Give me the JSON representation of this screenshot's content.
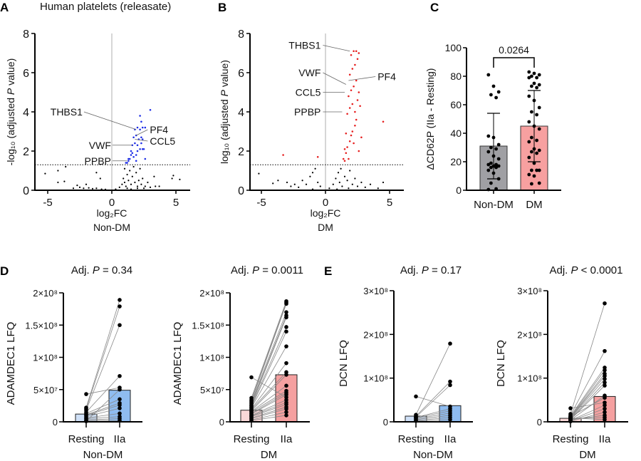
{
  "figure": {
    "panel_letters": [
      "A",
      "B",
      "C",
      "D",
      "E"
    ],
    "title_a": "Human platelets (releasate)"
  },
  "colors": {
    "nondm_sig": "#1f2fe6",
    "dm_sig": "#e61f1f",
    "ns": "#000000",
    "bar_nondm": "#a0a0a4",
    "bar_dm": "#f7a0a0",
    "rest_nondm": "#cfe0f7",
    "iia_nondm": "#8fbcf0",
    "rest_dm": "#f9d8d8",
    "iia_dm": "#f5a0a0",
    "zero_line": "#c8c8c8"
  },
  "chart_data": [
    {
      "id": "A",
      "type": "scatter",
      "xlabel": "log₂FC",
      "group": "Non-DM",
      "ylabel_parts": [
        "-log₁₀ (adjusted ",
        "P",
        " value)"
      ],
      "xlim": [
        -6,
        6.1
      ],
      "ylim": [
        0,
        8
      ],
      "xticks": [
        -5,
        0,
        5
      ],
      "yticks": [
        0,
        2,
        4,
        6,
        8
      ],
      "threshold": 1.3,
      "significant": [
        [
          1.2,
          1.4
        ],
        [
          1.3,
          1.5
        ],
        [
          1.1,
          1.4
        ],
        [
          1.4,
          1.6
        ],
        [
          1.5,
          1.8
        ],
        [
          1.6,
          1.9
        ],
        [
          1.7,
          1.7
        ],
        [
          1.9,
          1.8
        ],
        [
          2.0,
          2.0
        ],
        [
          2.2,
          2.1
        ],
        [
          2.4,
          2.1
        ],
        [
          2.5,
          2.1
        ],
        [
          1.6,
          2.3
        ],
        [
          1.8,
          2.4
        ],
        [
          2.0,
          2.3
        ],
        [
          2.3,
          2.4
        ],
        [
          1.7,
          2.7
        ],
        [
          1.9,
          2.8
        ],
        [
          2.1,
          2.6
        ],
        [
          2.3,
          2.7
        ],
        [
          2.4,
          2.6
        ],
        [
          1.8,
          3.1
        ],
        [
          2.0,
          3.2
        ],
        [
          2.2,
          3.1
        ],
        [
          2.4,
          3.2
        ],
        [
          2.6,
          3.2
        ],
        [
          2.3,
          3.5
        ],
        [
          2.2,
          3.8
        ],
        [
          3.0,
          4.1
        ],
        [
          1.5,
          2.0
        ],
        [
          1.3,
          1.6
        ],
        [
          2.6,
          1.6
        ],
        [
          1.9,
          1.5
        ]
      ],
      "nonsignificant": [
        [
          -5.2,
          0.85
        ],
        [
          -4.2,
          1.0
        ],
        [
          -3.6,
          1.2
        ],
        [
          -4.2,
          0.4
        ],
        [
          -3.7,
          0.45
        ],
        [
          -1.2,
          0.9
        ],
        [
          -0.9,
          0.6
        ],
        [
          4.8,
          0.75
        ],
        [
          4.7,
          0.6
        ],
        [
          5.3,
          0.55
        ],
        [
          3.3,
          0.7
        ],
        [
          -3.0,
          0.1
        ],
        [
          -2.7,
          0.25
        ],
        [
          -2.5,
          0.15
        ],
        [
          -2.2,
          0.1
        ],
        [
          -2.0,
          0.3
        ],
        [
          -1.8,
          0.12
        ],
        [
          -1.5,
          0.08
        ],
        [
          -1.2,
          0.1
        ],
        [
          -0.8,
          0.05
        ],
        [
          -0.5,
          0.04
        ],
        [
          0.3,
          0.05
        ],
        [
          0.6,
          0.15
        ],
        [
          0.8,
          0.3
        ],
        [
          0.9,
          0.6
        ],
        [
          1.0,
          0.4
        ],
        [
          1.1,
          0.2
        ],
        [
          1.2,
          0.8
        ],
        [
          1.3,
          0.5
        ],
        [
          1.4,
          1.0
        ],
        [
          1.5,
          0.3
        ],
        [
          1.6,
          0.7
        ],
        [
          1.7,
          1.2
        ],
        [
          1.8,
          0.4
        ],
        [
          1.9,
          0.9
        ],
        [
          2.0,
          0.2
        ],
        [
          2.1,
          0.5
        ],
        [
          2.2,
          1.1
        ],
        [
          2.3,
          0.3
        ],
        [
          2.4,
          0.6
        ],
        [
          2.6,
          0.2
        ],
        [
          2.8,
          0.4
        ],
        [
          3.0,
          0.15
        ],
        [
          3.4,
          0.2
        ],
        [
          3.7,
          0.2
        ],
        [
          1.0,
          1.1
        ],
        [
          1.2,
          0.1
        ],
        [
          1.5,
          0.05
        ],
        [
          2.0,
          0.1
        ],
        [
          2.5,
          0.1
        ]
      ],
      "annotations": [
        {
          "label": "THBS1",
          "point": [
            1.9,
            3.1
          ],
          "side": "left",
          "text_y": 4.0
        },
        {
          "label": "PF4",
          "point": [
            1.9,
            2.8
          ],
          "side": "right",
          "text_y": 3.0
        },
        {
          "label": "CCL5",
          "point": [
            1.8,
            2.6
          ],
          "side": "right",
          "text_y": 2.6
        },
        {
          "label": "VWF",
          "point": [
            1.6,
            2.3
          ],
          "side": "left",
          "text_y": 2.3
        },
        {
          "label": "PPBP",
          "point": [
            1.2,
            1.5
          ],
          "side": "left",
          "text_y": 1.5
        }
      ]
    },
    {
      "id": "B",
      "type": "scatter",
      "xlabel": "log₂FC",
      "group": "DM",
      "ylabel_parts": [
        "log₁₀ (adjusted ",
        "P",
        " value)"
      ],
      "xlim": [
        -5.9,
        6.1
      ],
      "ylim": [
        0,
        8
      ],
      "xticks": [
        -5,
        0,
        5
      ],
      "yticks": [
        0,
        2,
        4,
        6,
        8
      ],
      "threshold": 1.3,
      "significant": [
        [
          -3.3,
          1.8
        ],
        [
          -0.6,
          1.7
        ],
        [
          4.5,
          3.5
        ],
        [
          1.5,
          1.5
        ],
        [
          1.6,
          1.9
        ],
        [
          1.7,
          2.2
        ],
        [
          1.8,
          1.6
        ],
        [
          1.9,
          2.5
        ],
        [
          2.0,
          2.8
        ],
        [
          2.1,
          3.0
        ],
        [
          2.2,
          2.4
        ],
        [
          2.3,
          3.3
        ],
        [
          2.4,
          3.6
        ],
        [
          1.7,
          3.9
        ],
        [
          1.9,
          4.2
        ],
        [
          2.1,
          4.4
        ],
        [
          2.3,
          4.0
        ],
        [
          2.5,
          4.6
        ],
        [
          1.8,
          4.8
        ],
        [
          2.0,
          5.1
        ],
        [
          2.2,
          5.3
        ],
        [
          2.4,
          5.6
        ],
        [
          2.6,
          5.0
        ],
        [
          1.9,
          5.9
        ],
        [
          2.1,
          6.2
        ],
        [
          2.3,
          6.4
        ],
        [
          2.5,
          6.7
        ],
        [
          2.0,
          6.9
        ],
        [
          2.2,
          7.1
        ],
        [
          2.4,
          7.1
        ],
        [
          2.6,
          7.0
        ],
        [
          1.6,
          2.9
        ],
        [
          1.5,
          2.1
        ],
        [
          2.7,
          4.3
        ],
        [
          2.8,
          2.7
        ],
        [
          1.4,
          1.6
        ],
        [
          2.6,
          2.0
        ]
      ],
      "nonsignificant": [
        [
          -5.2,
          0.85
        ],
        [
          -4.1,
          0.35
        ],
        [
          -3.7,
          0.5
        ],
        [
          -3.0,
          0.4
        ],
        [
          -2.7,
          0.2
        ],
        [
          -2.4,
          0.3
        ],
        [
          -2.1,
          0.15
        ],
        [
          -1.8,
          0.5
        ],
        [
          -1.5,
          0.3
        ],
        [
          -1.2,
          0.7
        ],
        [
          -1.0,
          0.9
        ],
        [
          -0.8,
          1.1
        ],
        [
          -0.6,
          0.4
        ],
        [
          -0.4,
          0.2
        ],
        [
          0.3,
          0.1
        ],
        [
          0.6,
          0.3
        ],
        [
          0.8,
          0.6
        ],
        [
          1.0,
          0.9
        ],
        [
          1.1,
          0.4
        ],
        [
          1.2,
          1.1
        ],
        [
          1.3,
          0.2
        ],
        [
          1.5,
          0.7
        ],
        [
          1.7,
          0.5
        ],
        [
          1.9,
          1.0
        ],
        [
          2.1,
          0.3
        ],
        [
          2.3,
          0.6
        ],
        [
          2.5,
          0.2
        ],
        [
          2.8,
          0.4
        ],
        [
          3.1,
          0.15
        ],
        [
          3.5,
          0.3
        ],
        [
          4.1,
          0.1
        ],
        [
          4.5,
          0.4
        ],
        [
          -1.0,
          0.05
        ],
        [
          0.9,
          0.05
        ],
        [
          1.8,
          0.1
        ]
      ],
      "annotations": [
        {
          "label": "THBS1",
          "point": [
            1.9,
            7.1
          ],
          "side": "left",
          "text_y": 7.4
        },
        {
          "label": "VWF",
          "point": [
            1.6,
            5.4
          ],
          "side": "left",
          "text_y": 6.0
        },
        {
          "label": "CCL5",
          "point": [
            1.5,
            5.0
          ],
          "side": "left",
          "text_y": 5.0
        },
        {
          "label": "PPBP",
          "point": [
            1.3,
            4.0
          ],
          "side": "left",
          "text_y": 4.0
        },
        {
          "label": "PF4",
          "point": [
            1.8,
            5.6
          ],
          "side": "right",
          "text_y": 5.8
        }
      ]
    },
    {
      "id": "C",
      "type": "bar",
      "ylabel": "ΔCD62P (IIa - Resting)",
      "ylim": [
        0,
        100
      ],
      "yticks": [
        0,
        20,
        40,
        60,
        80,
        100
      ],
      "categories": [
        "Non-DM",
        "DM"
      ],
      "means": [
        31,
        45
      ],
      "sd_low": [
        8,
        20
      ],
      "sd_high": [
        54,
        70
      ],
      "points": [
        [
          81,
          73,
          69,
          67,
          65,
          38,
          37,
          32,
          30,
          29,
          27,
          24,
          22,
          19,
          18,
          18,
          17,
          17,
          16,
          16,
          14,
          12,
          8,
          5,
          1,
          0.5
        ],
        [
          83,
          82,
          81,
          80,
          79,
          79,
          75,
          74,
          73,
          72,
          66,
          63,
          58,
          55,
          53,
          48,
          45,
          43,
          37,
          35,
          34,
          29,
          28,
          27,
          26,
          23,
          19,
          14,
          14,
          14,
          11,
          10,
          5,
          4.5
        ]
      ],
      "comparison_p": "0.0264"
    },
    {
      "id": "D1",
      "type": "paired-bar",
      "title_parts": [
        "Adj. ",
        "P",
        " = 0.34"
      ],
      "ylabel": "ADAMDEC1 LFQ",
      "group": "Non-DM",
      "categories": [
        "Resting",
        "IIa"
      ],
      "ylim": [
        0,
        200000000
      ],
      "yticks": [
        0,
        50000000,
        100000000,
        150000000,
        200000000
      ],
      "ytick_labels": [
        "0",
        "5×10⁷",
        "1×10⁸",
        "1.5×10⁸",
        "2×10⁸"
      ],
      "means": [
        12000000,
        49000000
      ],
      "resting": [
        43000000.0,
        22000000.0,
        20000000.0,
        18000000.0,
        15000000.0,
        13000000.0,
        11000000.0,
        10000000.0,
        8000000.0,
        6000000.0,
        5000000.0,
        3000000.0,
        2000000.0,
        1000000.0
      ],
      "iia": [
        53000000.0,
        189000000.0,
        179000000.0,
        150000000.0,
        71000000.0,
        35000000.0,
        29000000.0,
        26000000.0,
        21000000.0,
        13000000.0,
        8000000.0,
        5000000.0,
        2000000.0,
        50000000.0
      ]
    },
    {
      "id": "D2",
      "type": "paired-bar",
      "title_parts": [
        "Adj. ",
        "P",
        " = 0.0011"
      ],
      "ylabel": "ADAMDEC1 LFQ",
      "group": "DM",
      "categories": [
        "Resting",
        "IIa"
      ],
      "ylim": [
        0,
        200000000
      ],
      "yticks": [
        0,
        50000000,
        100000000,
        150000000,
        200000000
      ],
      "ytick_labels": [
        "0",
        "5×10⁷",
        "1×10⁸",
        "1.5×10⁸",
        "2×10⁸"
      ],
      "means": [
        18000000,
        73000000
      ],
      "resting": [
        69000000.0,
        37000000.0,
        34000000.0,
        32000000.0,
        30000000.0,
        28000000.0,
        26000000.0,
        25000000.0,
        23000000.0,
        22000000.0,
        20000000.0,
        19000000.0,
        17000000.0,
        16000000.0,
        15000000.0,
        13000000.0,
        12000000.0,
        10000000.0,
        9000000.0,
        8000000.0,
        6000000.0,
        5000000.0,
        3000000.0,
        2000000.0
      ],
      "iia": [
        38000000.0,
        187000000.0,
        185000000.0,
        183000000.0,
        170000000.0,
        165000000.0,
        162000000.0,
        147000000.0,
        140000000.0,
        117000000.0,
        91000000.0,
        77000000.0,
        73000000.0,
        56000000.0,
        48000000.0,
        45000000.0,
        42000000.0,
        34000000.0,
        30000000.0,
        27000000.0,
        23000000.0,
        20000000.0,
        15000000.0,
        10000000.0
      ]
    },
    {
      "id": "E1",
      "type": "paired-bar",
      "title_parts": [
        "Adj. ",
        "P",
        " = 0.17"
      ],
      "ylabel": "DCN LFQ",
      "group": "Non-DM",
      "categories": [
        "Resting",
        "IIa"
      ],
      "ylim": [
        0,
        300000000
      ],
      "yticks": [
        0,
        100000000,
        200000000,
        300000000
      ],
      "ytick_labels": [
        "0",
        "1×10⁸",
        "2×10⁸",
        "3×10⁸"
      ],
      "means": [
        13000000,
        37000000
      ],
      "resting": [
        58000000.0,
        16000000.0,
        13000000.0,
        11000000.0,
        10000000.0,
        9000000.0,
        7000000.0,
        5000000.0,
        3000000.0,
        2000000.0
      ],
      "iia": [
        35000000.0,
        179000000.0,
        92000000.0,
        84000000.0,
        30000000.0,
        25000000.0,
        20000000.0,
        15000000.0,
        10000000.0,
        5000000.0
      ]
    },
    {
      "id": "E2",
      "type": "paired-bar",
      "title_parts": [
        "Adj. ",
        "P",
        " < 0.0001"
      ],
      "ylabel": "DCN LFQ",
      "group": "DM",
      "categories": [
        "Resting",
        "IIa"
      ],
      "ylim": [
        0,
        300000000
      ],
      "yticks": [
        0,
        100000000,
        200000000,
        300000000
      ],
      "ytick_labels": [
        "0",
        "1×10⁸",
        "2×10⁸",
        "3×10⁸"
      ],
      "means": [
        8000000,
        58000000
      ],
      "resting": [
        31000000.0,
        18000000.0,
        15000000.0,
        13000000.0,
        11000000.0,
        10000000.0,
        9000000.0,
        8000000.0,
        6000000.0,
        5000000.0,
        4000000.0,
        3000000.0,
        2000000.0,
        1000000.0,
        5000000.0,
        7000000.0,
        9000000.0,
        12000000.0
      ],
      "iia": [
        44000000.0,
        271000000.0,
        162000000.0,
        124000000.0,
        118000000.0,
        110000000.0,
        105000000.0,
        98000000.0,
        90000000.0,
        83000000.0,
        60000000.0,
        38000000.0,
        30000000.0,
        22000000.0,
        15000000.0,
        10000000.0,
        5000000.0,
        55000000.0
      ]
    }
  ]
}
